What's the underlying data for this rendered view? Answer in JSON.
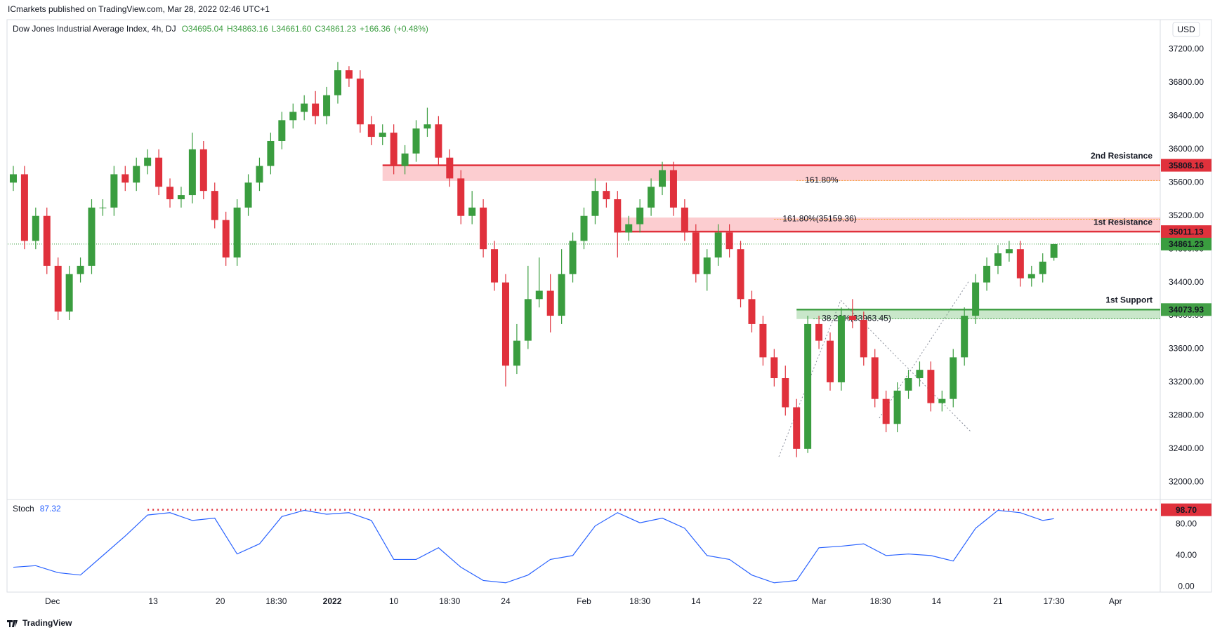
{
  "header": {
    "publisher": "ICmarkets published on TradingView.com, Mar 28, 2022 02:46 UTC+1",
    "currency": "USD",
    "logo": "TradingView"
  },
  "chart_data": [
    {
      "type": "candlestick",
      "title": "Dow Jones Industrial Average Index, 4h, DJ",
      "ohlc_header": [
        {
          "value": 34695.04,
          "label": "O34695.04"
        },
        {
          "value": 34863.16,
          "label": "H34863.16"
        },
        {
          "value": 34661.6,
          "label": "L34661.60"
        },
        {
          "value": 34861.23,
          "label": "C34861.23"
        },
        {
          "value": 166.36,
          "label": "+166.36"
        },
        {
          "value": 0.48,
          "label": "(+0.48%)"
        }
      ],
      "up_color": "#3a9d3f",
      "down_color": "#e0313c",
      "x": [
        0,
        2,
        4,
        6,
        8,
        10,
        12,
        14,
        16,
        18,
        20,
        22,
        24,
        26,
        28,
        30,
        32,
        34,
        36,
        38,
        40,
        42,
        44,
        46,
        48,
        50,
        52,
        54,
        56,
        58,
        60,
        62,
        64,
        66,
        68,
        70,
        72,
        74,
        76,
        78,
        80,
        82,
        84,
        86,
        88,
        90,
        92,
        94,
        96,
        98,
        100,
        102,
        104,
        106,
        108,
        110,
        112,
        114,
        116,
        118,
        120,
        122,
        124,
        126,
        128,
        130,
        132,
        134,
        136,
        138,
        140,
        142,
        144,
        146,
        148,
        150,
        152,
        154,
        156,
        158,
        160,
        162,
        164,
        166,
        168,
        170,
        172,
        174,
        176,
        178,
        180,
        182,
        184,
        186
      ],
      "open": [
        35600,
        35700,
        34900,
        35200,
        34600,
        34050,
        34500,
        34600,
        35300,
        35300,
        35700,
        35600,
        35800,
        35900,
        35550,
        35400,
        35450,
        36000,
        35500,
        35150,
        34700,
        35300,
        35600,
        35800,
        36100,
        36350,
        36450,
        36550,
        36400,
        36650,
        36950,
        36850,
        36300,
        36150,
        36200,
        35800,
        35950,
        36250,
        36300,
        35900,
        35650,
        35200,
        35300,
        34800,
        34400,
        33400,
        33700,
        34200,
        34300,
        34000,
        34500,
        34900,
        35200,
        35500,
        35400,
        35000,
        35100,
        35300,
        35550,
        35750,
        35300,
        35000,
        34500,
        34700,
        35000,
        34800,
        34200,
        33900,
        33500,
        33250,
        32900,
        32400,
        33900,
        33700,
        33200,
        34000,
        33950,
        33500,
        33000,
        32700,
        33100,
        33250,
        33350,
        32950,
        33000,
        33500,
        34000,
        34400,
        34600,
        34750,
        34800,
        34450,
        34500,
        34695.04
      ],
      "high": [
        35800,
        35800,
        35300,
        35300,
        34700,
        34600,
        34700,
        35400,
        35400,
        35800,
        35800,
        35900,
        36000,
        36000,
        35650,
        35550,
        36200,
        36100,
        35600,
        35250,
        35400,
        35700,
        35900,
        36200,
        36450,
        36550,
        36650,
        36700,
        36750,
        37050,
        37000,
        36950,
        36400,
        36300,
        36300,
        36050,
        36350,
        36500,
        36400,
        36000,
        35750,
        35500,
        35400,
        34900,
        34500,
        33900,
        34600,
        34700,
        34500,
        34800,
        35000,
        35300,
        35650,
        35600,
        35500,
        35200,
        35400,
        35650,
        35850,
        35850,
        35400,
        35100,
        34800,
        35100,
        35100,
        34900,
        34300,
        34000,
        33600,
        33400,
        33000,
        34000,
        34000,
        33800,
        34100,
        34200,
        34050,
        33600,
        33100,
        33200,
        33350,
        33450,
        33450,
        33100,
        33600,
        34100,
        34500,
        34700,
        34850,
        34900,
        34900,
        34600,
        34750,
        34863.16
      ],
      "low": [
        35500,
        34800,
        34800,
        34500,
        33950,
        33950,
        34400,
        34500,
        35200,
        35200,
        35500,
        35500,
        35700,
        35450,
        35300,
        35300,
        35350,
        35400,
        35050,
        34600,
        34600,
        35200,
        35500,
        35700,
        36000,
        36250,
        36350,
        36300,
        36300,
        36550,
        36750,
        36200,
        36050,
        36050,
        35700,
        35700,
        35850,
        36150,
        35800,
        35550,
        35100,
        35100,
        34700,
        34300,
        33150,
        33300,
        33600,
        34100,
        33800,
        33900,
        34400,
        34800,
        35100,
        35300,
        34700,
        34900,
        35000,
        35200,
        35450,
        35200,
        34900,
        34400,
        34300,
        34600,
        34700,
        34100,
        33800,
        33400,
        33150,
        32800,
        32300,
        32350,
        33600,
        33100,
        33100,
        33850,
        33400,
        32900,
        32600,
        32600,
        33000,
        33150,
        32850,
        32850,
        32900,
        33400,
        33900,
        34300,
        34500,
        34650,
        34350,
        34350,
        34400,
        34661.6
      ],
      "close": [
        35700,
        34900,
        35200,
        34600,
        34050,
        34500,
        34600,
        35300,
        35300,
        35700,
        35600,
        35800,
        35900,
        35550,
        35400,
        35450,
        36000,
        35500,
        35150,
        34700,
        35300,
        35600,
        35800,
        36100,
        36350,
        36450,
        36550,
        36400,
        36650,
        36950,
        36850,
        36300,
        36150,
        36200,
        35800,
        35950,
        36250,
        36300,
        35900,
        35650,
        35200,
        35300,
        34800,
        34400,
        33400,
        33700,
        34200,
        34300,
        34000,
        34500,
        34900,
        35200,
        35500,
        35400,
        35000,
        35100,
        35300,
        35550,
        35750,
        35300,
        35000,
        34500,
        34700,
        35000,
        34800,
        34200,
        33900,
        33500,
        33250,
        32900,
        32400,
        33900,
        33700,
        33200,
        34000,
        33950,
        33500,
        33000,
        32700,
        33100,
        33250,
        33350,
        32950,
        33000,
        33500,
        34000,
        34400,
        34600,
        34750,
        34800,
        34450,
        34500,
        34650,
        34861.23
      ],
      "xlim": [
        -1,
        205
      ],
      "ylim": [
        31800,
        37550
      ],
      "yticks": [
        {
          "value": 32000,
          "label": "32000.00"
        },
        {
          "value": 32400,
          "label": "32400.00"
        },
        {
          "value": 32800,
          "label": "32800.00"
        },
        {
          "value": 33200,
          "label": "33200.00"
        },
        {
          "value": 33600,
          "label": "33600.00"
        },
        {
          "value": 34000,
          "label": "34000.00"
        },
        {
          "value": 34400,
          "label": "34400.00"
        },
        {
          "value": 34800,
          "label": "34800.00"
        },
        {
          "value": 35200,
          "label": "35200.00"
        },
        {
          "value": 35600,
          "label": "35600.00"
        },
        {
          "value": 36000,
          "label": "36000.00"
        },
        {
          "value": 36400,
          "label": "36400.00"
        },
        {
          "value": 36800,
          "label": "36800.00"
        },
        {
          "value": 37200,
          "label": "37200.00"
        }
      ],
      "xticks": [
        {
          "value": 7,
          "label": "Dec"
        },
        {
          "value": 25,
          "label": "13"
        },
        {
          "value": 37,
          "label": "20"
        },
        {
          "value": 47,
          "label": "18:30"
        },
        {
          "value": 57,
          "label": "2022"
        },
        {
          "value": 68,
          "label": "10"
        },
        {
          "value": 78,
          "label": "18:30"
        },
        {
          "value": 88,
          "label": "24"
        },
        {
          "value": 102,
          "label": "Feb"
        },
        {
          "value": 112,
          "label": "18:30"
        },
        {
          "value": 122,
          "label": "14"
        },
        {
          "value": 133,
          "label": "22"
        },
        {
          "value": 144,
          "label": "Mar"
        },
        {
          "value": 155,
          "label": "18:30"
        },
        {
          "value": 165,
          "label": "14"
        },
        {
          "value": 176,
          "label": "21"
        },
        {
          "value": 186,
          "label": "17:30"
        },
        {
          "value": 197,
          "label": "Apr"
        }
      ],
      "last_price": {
        "value": 34861.23,
        "color": "#3a9d3f"
      },
      "levels": [
        {
          "name": "2nd Resistance",
          "value": 35808.16,
          "zone_low": 35620,
          "start": 66,
          "color": "#e0313c",
          "zone_color": "rgba(242,54,69,0.25)"
        },
        {
          "name": "1st Resistance",
          "value": 35011.13,
          "zone_high": 35180,
          "start": 108,
          "color": "#e0313c",
          "zone_color": "rgba(242,54,69,0.25)"
        },
        {
          "name": "1st Support",
          "value": 34073.93,
          "zone_low": 33960,
          "start": 140,
          "color": "#43a047",
          "zone_color": "rgba(76,175,80,0.3)"
        }
      ],
      "fib_levels": [
        {
          "label": "161.80%",
          "value": 35625,
          "start": 140,
          "color": "#f59a23"
        },
        {
          "label": "161.80%(35159.36)",
          "value": 35159.36,
          "start": 136,
          "color": "#f59a23"
        },
        {
          "label": "38.20%(33963.45)",
          "value": 33963.45,
          "start": 143,
          "color": "#43a047"
        }
      ]
    },
    {
      "type": "line",
      "name": "Stoch",
      "last_value": 87.32,
      "color": "#2962ff",
      "x": [
        0,
        4,
        8,
        12,
        16,
        20,
        24,
        28,
        32,
        36,
        40,
        44,
        48,
        52,
        56,
        60,
        64,
        68,
        72,
        76,
        80,
        84,
        88,
        92,
        96,
        100,
        104,
        108,
        112,
        116,
        120,
        124,
        128,
        132,
        136,
        140,
        144,
        148,
        152,
        156,
        160,
        164,
        168,
        172,
        176,
        180,
        184,
        186
      ],
      "values": [
        25,
        27,
        18,
        15,
        40,
        65,
        92,
        95,
        85,
        88,
        42,
        55,
        90,
        98,
        93,
        95,
        85,
        35,
        35,
        50,
        25,
        8,
        5,
        15,
        35,
        40,
        78,
        95,
        82,
        88,
        75,
        40,
        35,
        15,
        5,
        8,
        50,
        52,
        55,
        40,
        42,
        40,
        33,
        75,
        98,
        95,
        85,
        87.32
      ],
      "ylim": [
        -6,
        111
      ],
      "yticks": [
        {
          "value": 0,
          "label": "0.00"
        },
        {
          "value": 40,
          "label": "40.00"
        },
        {
          "value": 80,
          "label": "80.00"
        }
      ],
      "level": {
        "value": 98.7,
        "label": "98.70",
        "start": 24,
        "color": "#e0313c"
      }
    }
  ]
}
